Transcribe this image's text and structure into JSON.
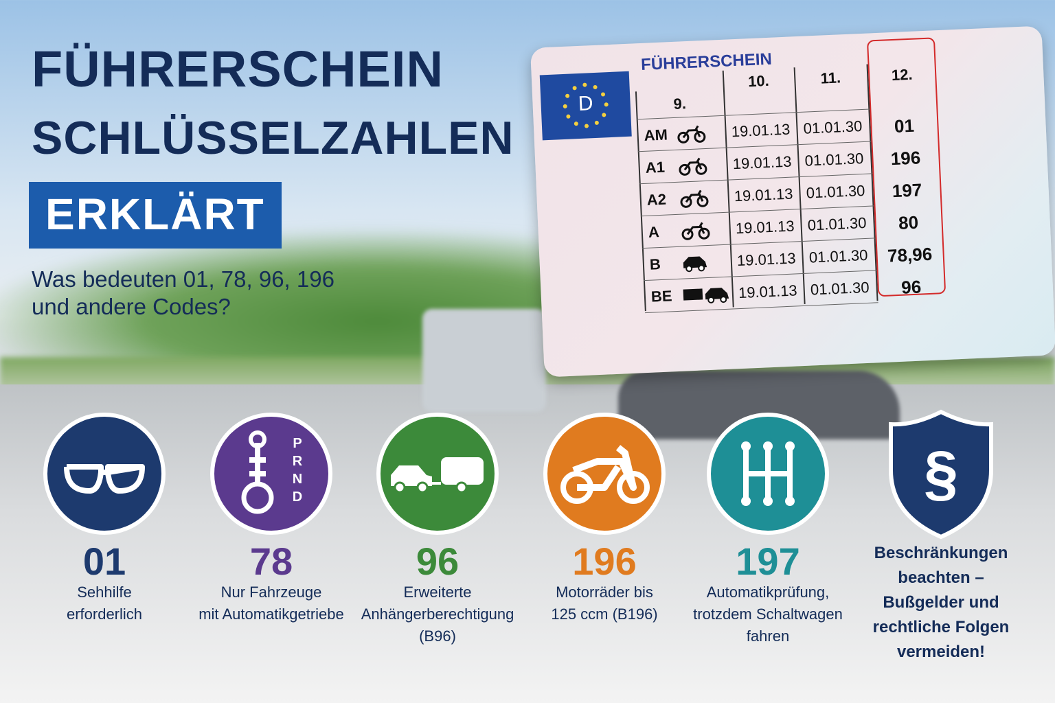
{
  "header": {
    "title_lines": [
      "FÜHRERSCHEIN",
      "SCHLÜSSELZAHLEN"
    ],
    "badge": "ERKLÄRT",
    "subtitle_lines": [
      "Was bedeuten 01, 78, 96, 196",
      "und andere Codes?"
    ]
  },
  "card": {
    "title": "FÜHRERSCHEIN",
    "country": "D",
    "columns": [
      "9.",
      "10.",
      "11.",
      "12."
    ],
    "rows": [
      [
        "AM",
        "19.01.13",
        "01.01.30",
        "01"
      ],
      [
        "A1",
        "19.01.13",
        "01.01.30",
        "196"
      ],
      [
        "A2",
        "19.01.13",
        "01.01.30",
        "197"
      ],
      [
        "A",
        "19.01.13",
        "01.01.30",
        "80"
      ],
      [
        "B",
        "19.01.13",
        "01.01.30",
        "78,96"
      ],
      [
        "BE",
        "19.01.13",
        "01.01.30",
        "96"
      ]
    ]
  },
  "codes": [
    {
      "code": "01",
      "color": "#1d3a6e",
      "lines": [
        "Sehhilfe",
        "erforderlich"
      ]
    },
    {
      "code": "78",
      "color": "#5b3a8e",
      "lines": [
        "Nur Fahrzeuge",
        "mit Automatikgetriebe"
      ],
      "icon_text": [
        "P",
        "R",
        "N",
        "D"
      ]
    },
    {
      "code": "96",
      "color": "#3c8a3a",
      "lines": [
        "Erweiterte",
        "Anhängerberechtigung",
        "(B96)"
      ]
    },
    {
      "code": "196",
      "color": "#e07b1f",
      "lines": [
        "Motorräder bis",
        "125 ccm (B196)"
      ]
    },
    {
      "code": "197",
      "color": "#1e8f96",
      "lines": [
        "Automatikprüfung,",
        "trotzdem Schaltwagen",
        "fahren"
      ]
    }
  ],
  "note": {
    "symbol": "§",
    "color": "#1d3a6e",
    "lines": [
      "Beschränkungen",
      "beachten –",
      "Bußgelder und",
      "rechtliche Folgen",
      "vermeiden!"
    ]
  }
}
